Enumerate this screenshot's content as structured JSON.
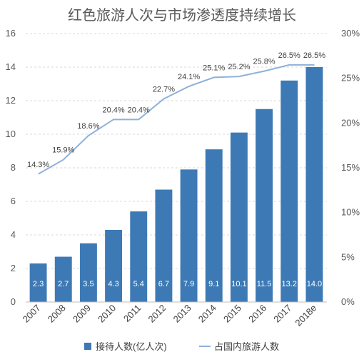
{
  "chart_data": {
    "type": "bar",
    "title": "红色旅游人次与市场渗透度持续增长",
    "categories": [
      "2007",
      "2008",
      "2009",
      "2010",
      "2011",
      "2012",
      "2013",
      "2014",
      "2015",
      "2016",
      "2017",
      "2018e"
    ],
    "series": [
      {
        "name": "接待人数(亿人次)",
        "type": "bar",
        "axis": "left",
        "values": [
          2.3,
          2.7,
          3.5,
          4.3,
          5.4,
          6.7,
          7.9,
          9.1,
          10.1,
          11.5,
          13.2,
          14.0
        ],
        "labels": [
          "2.3",
          "2.7",
          "3.5",
          "4.3",
          "5.4",
          "6.7",
          "7.9",
          "9.1",
          "10.1",
          "11.5",
          "13.2",
          "14.0"
        ],
        "color": "#3d7ab5"
      },
      {
        "name": "占国内旅游人数",
        "type": "line",
        "axis": "right",
        "values": [
          14.3,
          15.9,
          18.6,
          20.4,
          20.4,
          22.7,
          24.1,
          25.1,
          25.2,
          25.8,
          26.5,
          26.5
        ],
        "labels": [
          "14.3%",
          "15.9%",
          "18.6%",
          "20.4%",
          "20.4%",
          "22.7%",
          "24.1%",
          "25.1%",
          "25.2%",
          "25.8%",
          "26.5%",
          "26.5%"
        ],
        "color": "#8fb1d9"
      }
    ],
    "y_left": {
      "ylim": [
        0,
        16
      ],
      "ticks": [
        "0",
        "2",
        "4",
        "6",
        "8",
        "10",
        "12",
        "14",
        "16"
      ]
    },
    "y_right": {
      "ylim": [
        0,
        30
      ],
      "ticks": [
        "0%",
        "5%",
        "10%",
        "15%",
        "20%",
        "25%",
        "30%"
      ]
    },
    "gridlines": "dashed",
    "legend_position": "bottom"
  }
}
